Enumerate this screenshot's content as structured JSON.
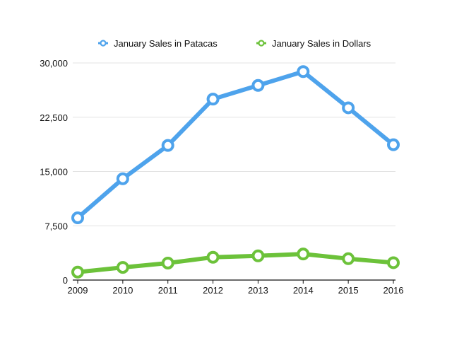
{
  "chart_data": {
    "type": "line",
    "categories": [
      "2009",
      "2010",
      "2011",
      "2012",
      "2013",
      "2014",
      "2015",
      "2016"
    ],
    "series": [
      {
        "name": "January Sales in Patacas",
        "color": "#4ea3ec",
        "values": [
          8600,
          14000,
          18600,
          25000,
          26900,
          28800,
          23800,
          18700
        ]
      },
      {
        "name": "January Sales in Dollars",
        "color": "#6cc23a",
        "values": [
          1100,
          1750,
          2350,
          3150,
          3350,
          3600,
          2950,
          2400
        ]
      }
    ],
    "ylim": [
      0,
      30000
    ],
    "yticks": [
      0,
      7500,
      15000,
      22500,
      30000
    ],
    "ytick_labels": [
      "0",
      "7,500",
      "15,000",
      "22,500",
      "30,000"
    ],
    "grid": "horizontal",
    "legend_position": "top"
  }
}
